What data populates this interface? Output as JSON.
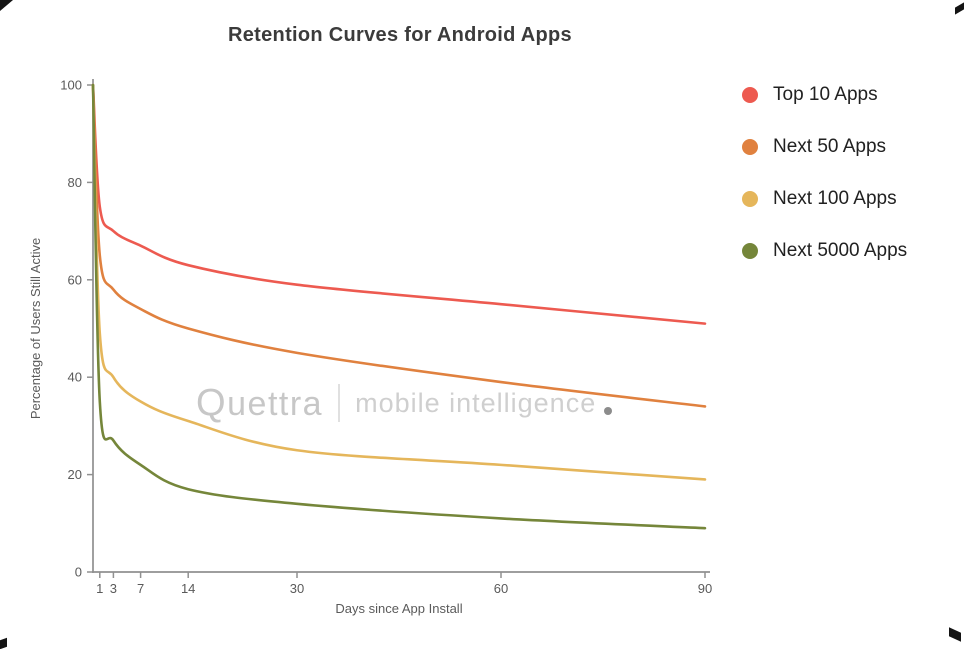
{
  "title": "Retention Curves for Android Apps",
  "watermark": {
    "brand": "Quettra",
    "separator": "|",
    "tagline": "mobile intelligence"
  },
  "chart_data": {
    "type": "line",
    "title": "Retention Curves for Android Apps",
    "xlabel": "Days since App Install",
    "ylabel": "Percentage of Users Still Active",
    "x": [
      0,
      1,
      3,
      7,
      14,
      30,
      60,
      90
    ],
    "xticks": [
      1,
      3,
      7,
      14,
      30,
      60,
      90
    ],
    "yticks": [
      0,
      20,
      40,
      60,
      80,
      100
    ],
    "xlim": [
      0,
      90
    ],
    "ylim": [
      0,
      100
    ],
    "grid": false,
    "legend_position": "right",
    "series": [
      {
        "name": "Top 10 Apps",
        "color": "#ed5a50",
        "values": [
          100,
          75,
          70,
          67,
          63,
          59,
          55,
          51
        ]
      },
      {
        "name": "Next 50 Apps",
        "color": "#e0813f",
        "values": [
          100,
          65,
          58,
          54,
          50,
          45,
          39,
          34
        ]
      },
      {
        "name": "Next 100 Apps",
        "color": "#e5b65b",
        "values": [
          100,
          49,
          40,
          35,
          31,
          25,
          22,
          19
        ]
      },
      {
        "name": "Next 5000 Apps",
        "color": "#75863a",
        "values": [
          100,
          35,
          27,
          22,
          17,
          14,
          11,
          9
        ]
      }
    ],
    "colors": {
      "axis": "#909090",
      "tick_text": "#5a5a5a",
      "title_text": "#3b3b3b",
      "legend_text": "#212121",
      "watermark": "#c7c7c7"
    }
  }
}
